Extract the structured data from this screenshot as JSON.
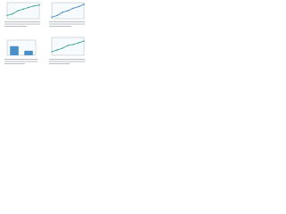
{
  "chart_data": [
    {
      "type": "line",
      "x": [
        0,
        1,
        2,
        3,
        4,
        5,
        6
      ],
      "values": [
        2,
        3,
        5,
        6,
        7,
        8,
        8.5
      ],
      "color": "#2a9d8f",
      "xlim": [
        0,
        6
      ],
      "ylim": [
        0,
        10
      ]
    },
    {
      "type": "line",
      "x": [
        0,
        1,
        2,
        3,
        4,
        5,
        6
      ],
      "values": [
        1,
        2,
        4,
        5,
        6.5,
        7.5,
        9
      ],
      "color": "#3b7fc4",
      "xlim": [
        0,
        6
      ],
      "ylim": [
        0,
        10
      ]
    },
    {
      "type": "bar",
      "categories": [
        null,
        null
      ],
      "values": [
        6,
        3
      ],
      "color": "#4a90c8",
      "ylim": [
        0,
        10
      ]
    },
    {
      "type": "line",
      "x": [
        0,
        1,
        2,
        3,
        4,
        5,
        6
      ],
      "values": [
        2,
        3,
        4,
        5.5,
        6,
        7,
        8
      ],
      "color": "#2a9d8f",
      "xlim": [
        0,
        6
      ],
      "ylim": [
        0,
        10
      ]
    }
  ]
}
